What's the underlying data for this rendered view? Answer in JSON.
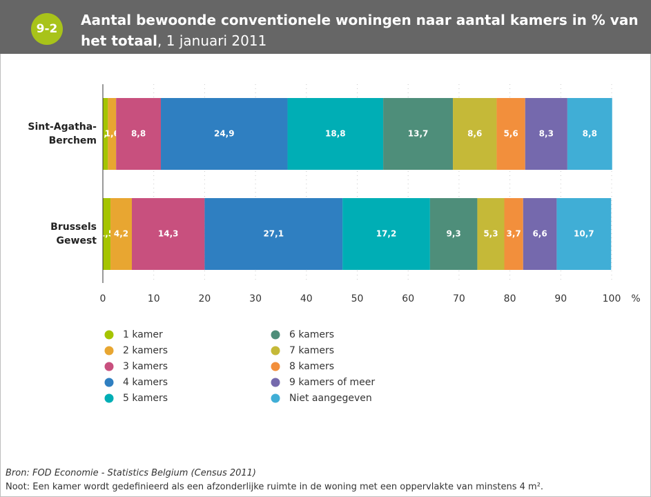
{
  "header": {
    "badge": "9-2",
    "title_bold": "Aantal bewoonde conventionele woningen naar aantal kamers in % van het totaal",
    "title_rest": ", 1 januari 2011"
  },
  "chart_data": {
    "type": "stacked-barh",
    "categories": [
      "Sint-Agatha-Berchem",
      "Brussels Gewest"
    ],
    "series": [
      {
        "name": "1 kamer",
        "color": "#a5c400",
        "values": [
          1.0,
          1.5
        ],
        "value_labels": [
          "1,0",
          "1,5"
        ]
      },
      {
        "name": "2 kamers",
        "color": "#e8a631",
        "values": [
          1.6,
          4.2
        ],
        "value_labels": [
          "1,6",
          "4,2"
        ]
      },
      {
        "name": "3 kamers",
        "color": "#c8507e",
        "values": [
          8.8,
          14.3
        ],
        "value_labels": [
          "8,8",
          "14,3"
        ]
      },
      {
        "name": "4 kamers",
        "color": "#2f7fc1",
        "values": [
          24.9,
          27.1
        ],
        "value_labels": [
          "24,9",
          "27,1"
        ]
      },
      {
        "name": "5 kamers",
        "color": "#00aeb5",
        "values": [
          18.8,
          17.2
        ],
        "value_labels": [
          "18,8",
          "17,2"
        ]
      },
      {
        "name": "6 kamers",
        "color": "#4e8e7a",
        "values": [
          13.7,
          9.3
        ],
        "value_labels": [
          "13,7",
          "9,3"
        ]
      },
      {
        "name": "7 kamers",
        "color": "#c5b938",
        "values": [
          8.6,
          5.3
        ],
        "value_labels": [
          "8,6",
          "5,3"
        ]
      },
      {
        "name": "8 kamers",
        "color": "#f28f3c",
        "values": [
          5.6,
          3.7
        ],
        "value_labels": [
          "5,6",
          "3,7"
        ]
      },
      {
        "name": "9 kamers of meer",
        "color": "#7569ad",
        "values": [
          8.3,
          6.6
        ],
        "value_labels": [
          "8,3",
          "6,6"
        ]
      },
      {
        "name": "Niet aangegeven",
        "color": "#40aed6",
        "values": [
          8.8,
          10.7
        ],
        "value_labels": [
          "8,8",
          "10,7"
        ]
      }
    ],
    "xlim": [
      0,
      100
    ],
    "xticks": [
      0,
      10,
      20,
      30,
      40,
      50,
      60,
      70,
      80,
      90,
      100
    ],
    "x_label": "%",
    "grid": true
  },
  "footer": {
    "source": "Bron: FOD Economie - Statistics Belgium (Census 2011)",
    "note": "Noot: Een kamer wordt gedefinieerd als een afzonderlijke ruimte in de woning met een oppervlakte van minstens 4 m²."
  }
}
